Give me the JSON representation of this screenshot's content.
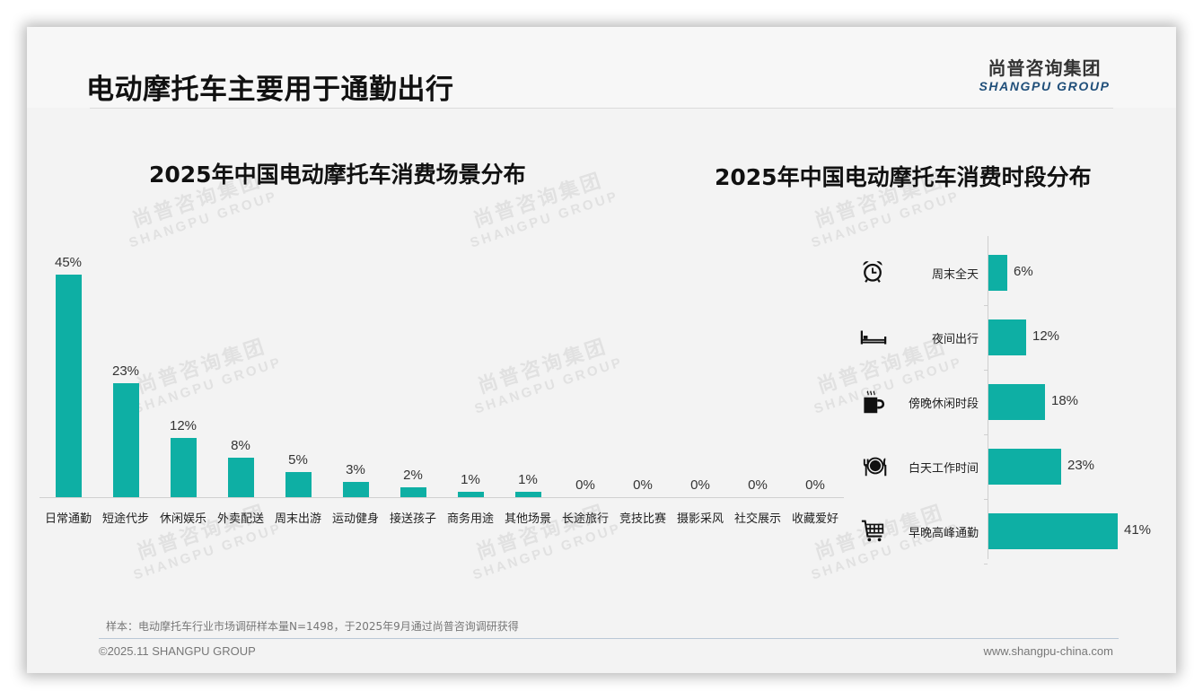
{
  "page": {
    "title": "电动摩托车主要用于通勤出行",
    "logo": {
      "cn": "尚普咨询集团",
      "en": "SHANGPU GROUP"
    },
    "watermark": {
      "cn": "尚普咨询集团",
      "en": "SHANGPU GROUP"
    },
    "note": "样本：电动摩托车行业市场调研样本量N=1498，于2025年9月通过尚普咨询调研获得",
    "copyright": "©2025.11 SHANGPU GROUP",
    "website": "www.shangpu-china.com",
    "colors": {
      "bar": "#0eafa4",
      "background": "#f3f3f3",
      "logo_en": "#1f4e79"
    }
  },
  "chart_data": [
    {
      "type": "bar",
      "orientation": "vertical",
      "title": "2025年中国电动摩托车消费场景分布",
      "xlabel": "",
      "ylabel": "",
      "categories": [
        "日常通勤",
        "短途代步",
        "休闲娱乐",
        "外卖配送",
        "周末出游",
        "运动健身",
        "接送孩子",
        "商务用途",
        "其他场景",
        "长途旅行",
        "竞技比赛",
        "摄影采风",
        "社交展示",
        "收藏爱好"
      ],
      "values": [
        45,
        23,
        12,
        8,
        5,
        3,
        2,
        1,
        1,
        0,
        0,
        0,
        0,
        0
      ],
      "labels": [
        "45%",
        "23%",
        "12%",
        "8%",
        "5%",
        "3%",
        "2%",
        "1%",
        "1%",
        "0%",
        "0%",
        "0%",
        "0%",
        "0%"
      ],
      "unit": "%",
      "grid": false,
      "legend": false,
      "ylim": [
        0,
        45
      ]
    },
    {
      "type": "bar",
      "orientation": "horizontal",
      "title": "2025年中国电动摩托车消费时段分布",
      "categories": [
        "周末全天",
        "夜间出行",
        "傍晚休闲时段",
        "白天工作时间",
        "早晚高峰通勤"
      ],
      "icons": [
        "alarm-clock-icon",
        "bed-icon",
        "coffee-cup-icon",
        "dining-plate-icon",
        "shopping-cart-icon"
      ],
      "values": [
        6,
        12,
        18,
        23,
        41
      ],
      "labels": [
        "6%",
        "12%",
        "18%",
        "23%",
        "41%"
      ],
      "unit": "%",
      "grid": false,
      "legend": false,
      "xlim": [
        0,
        41
      ]
    }
  ]
}
